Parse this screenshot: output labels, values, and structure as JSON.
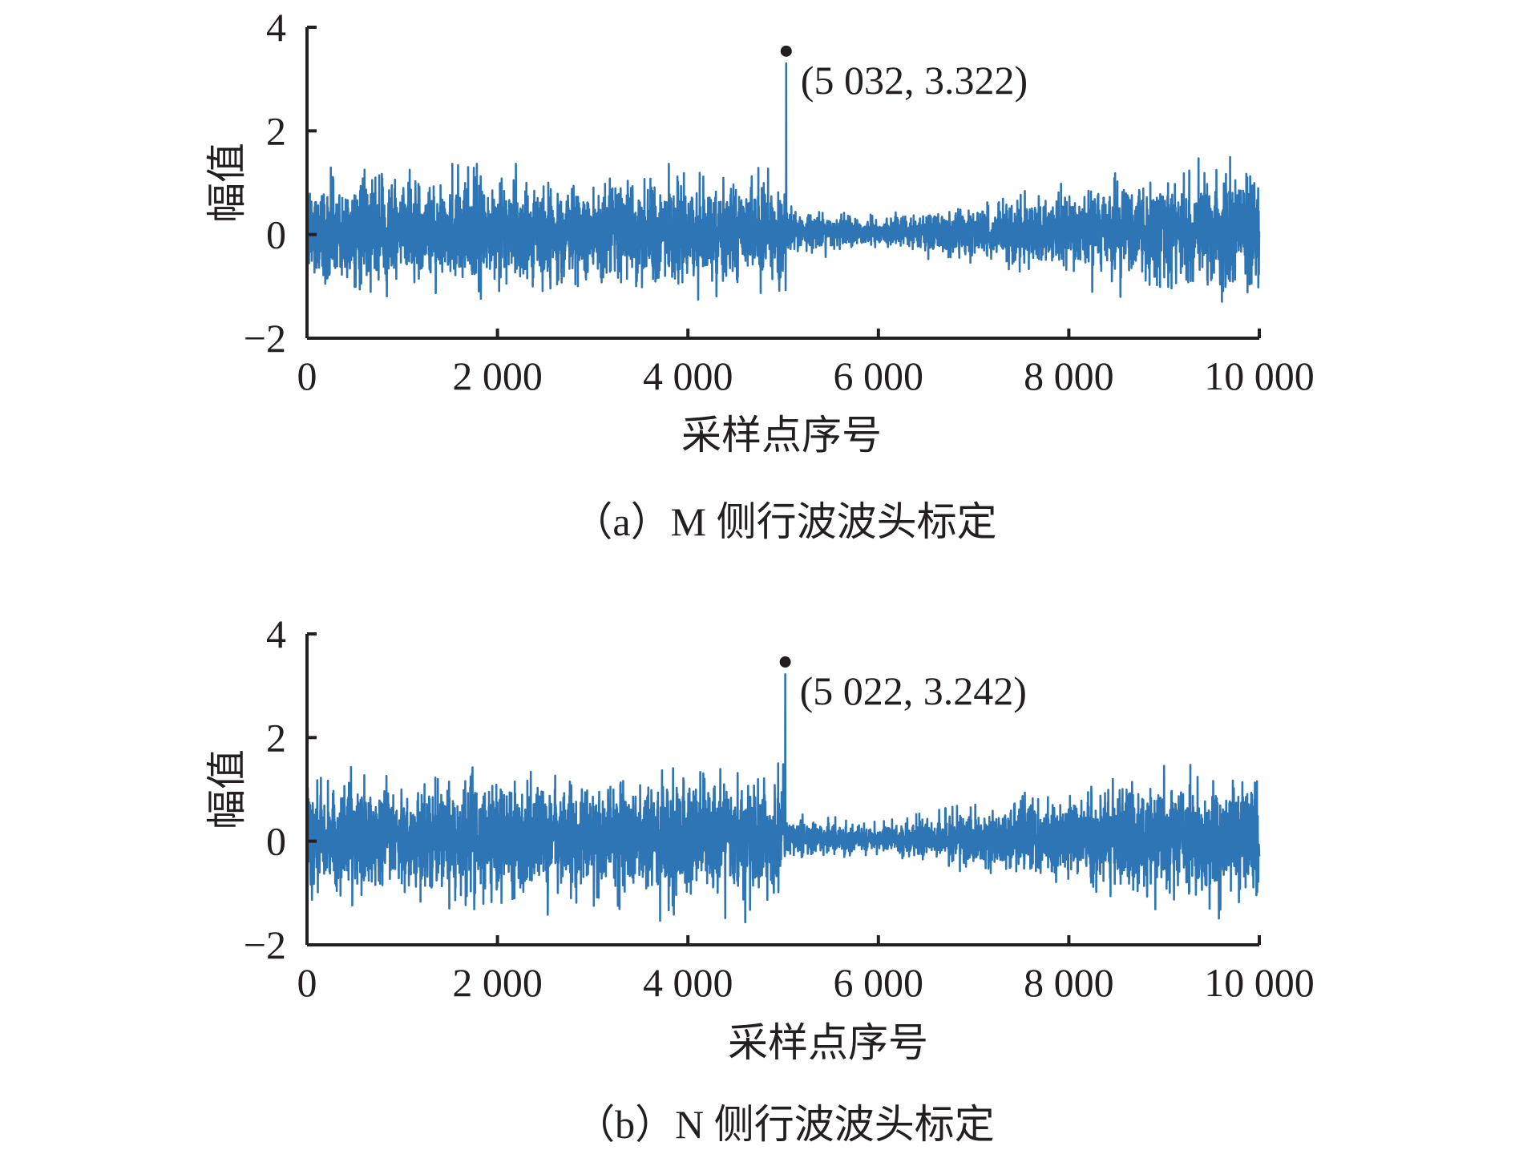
{
  "chart_data": [
    {
      "type": "line",
      "caption": "（a）M 侧行波波头标定",
      "xlabel": "采样点序号",
      "ylabel": "幅值",
      "xlim": [
        0,
        10000
      ],
      "ylim": [
        -2,
        4
      ],
      "xticks": [
        "0",
        "2 000",
        "4 000",
        "6 000",
        "8 000",
        "10 000"
      ],
      "yticks": [
        "−2",
        "0",
        "2",
        "4"
      ],
      "series_color": "#2e75b6",
      "peak": {
        "x": 5032,
        "y": 3.322,
        "label": "(5 032, 3.322)"
      },
      "envelope": {
        "pre_peak_amplitude": 1.3,
        "min_amplitude_near": 6000,
        "end_amplitude": 1.6
      }
    },
    {
      "type": "line",
      "caption": "（b）N 侧行波波头标定",
      "xlabel": "采样点序号",
      "ylabel": "幅值",
      "xlim": [
        0,
        10000
      ],
      "ylim": [
        -2,
        4
      ],
      "xticks": [
        "0",
        "2 000",
        "4 000",
        "6 000",
        "8 000",
        "10 000"
      ],
      "yticks": [
        "−2",
        "0",
        "2",
        "4"
      ],
      "series_color": "#2e75b6",
      "peak": {
        "x": 5022,
        "y": 3.242,
        "label": "(5 022, 3.242)"
      },
      "envelope": {
        "pre_peak_amplitude": 1.5,
        "min_amplitude_near": 6000,
        "end_amplitude": 1.8
      }
    }
  ]
}
